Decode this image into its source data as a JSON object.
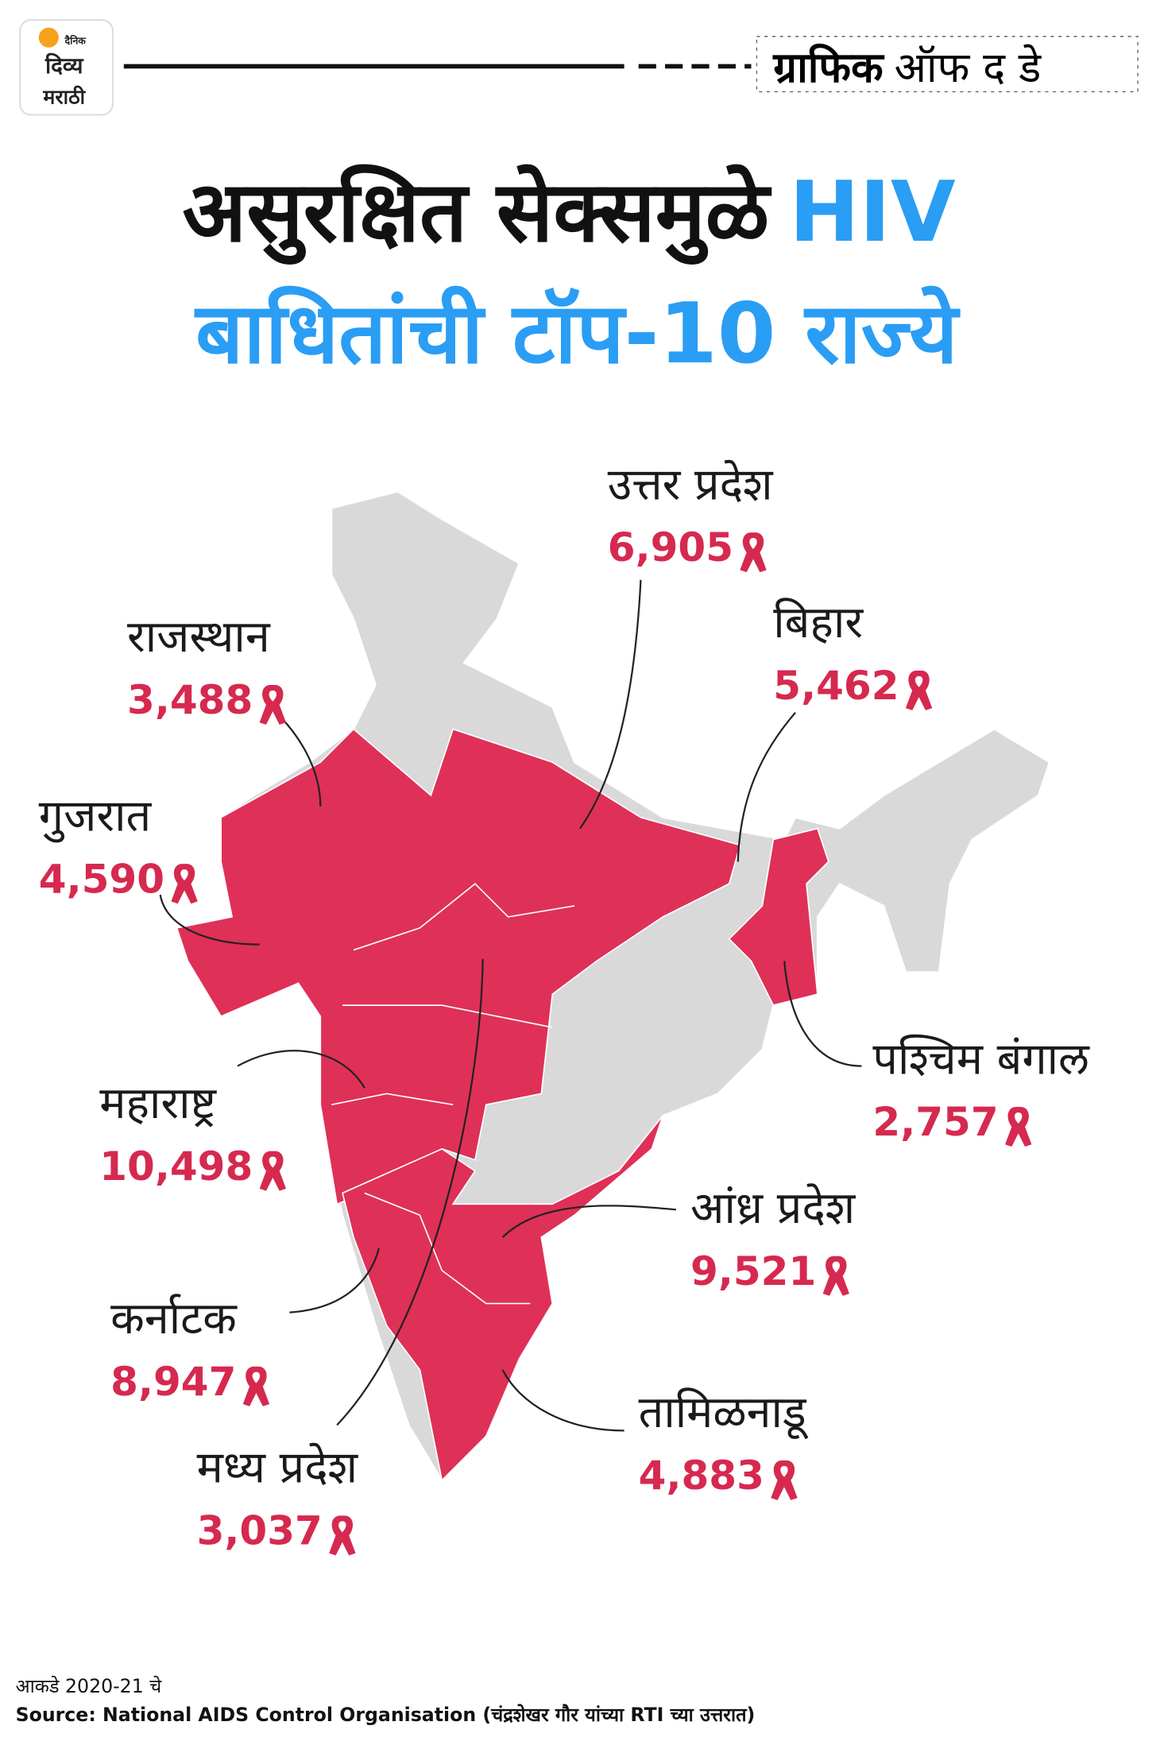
{
  "header": {
    "logo": [
      "दैनिक",
      "दिव्य",
      "मराठी"
    ],
    "tag_bold": "ग्राफिक",
    "tag_rest": "ऑफ द डे"
  },
  "title": {
    "line1": "असुरक्षित सेक्समुळे",
    "line1_highlight": "HIV",
    "line2": "बाधितांची टॉप-10 राज्ये"
  },
  "states": [
    {
      "name": "उत्तर प्रदेश",
      "value": "6,905"
    },
    {
      "name": "राजस्थान",
      "value": "3,488"
    },
    {
      "name": "बिहार",
      "value": "5,462"
    },
    {
      "name": "गुजरात",
      "value": "4,590"
    },
    {
      "name": "पश्चिम बंगाल",
      "value": "2,757"
    },
    {
      "name": "महाराष्ट्र",
      "value": "10,498"
    },
    {
      "name": "आंध्र प्रदेश",
      "value": "9,521"
    },
    {
      "name": "कर्नाटक",
      "value": "8,947"
    },
    {
      "name": "तामिळनाडू",
      "value": "4,883"
    },
    {
      "name": "मध्य प्रदेश",
      "value": "3,037"
    }
  ],
  "footer": {
    "note": "आकडे 2020-21 चे",
    "source": "Source: National AIDS Control Organisation (चंद्रशेखर गौर यांच्या RTI च्या उत्तरात)"
  }
}
